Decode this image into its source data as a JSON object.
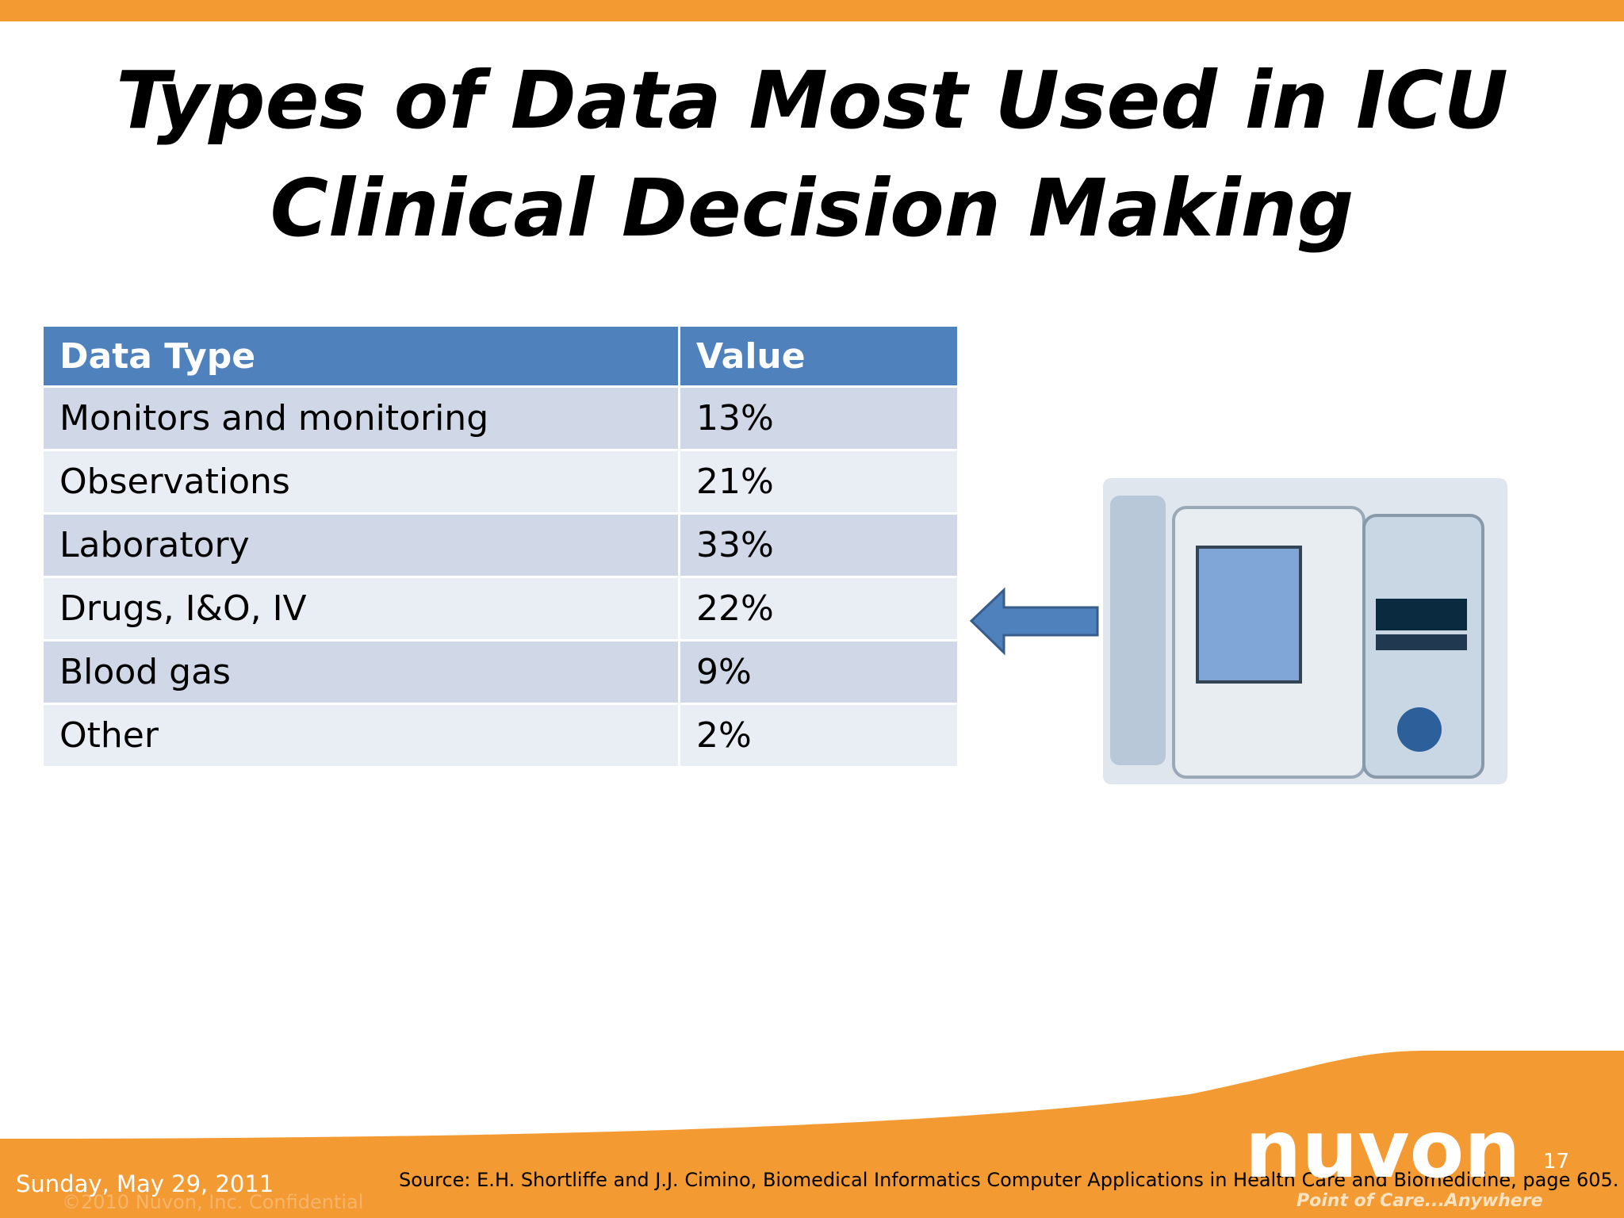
{
  "slide": {
    "title_line1": "Types of Data Most Used in ICU",
    "title_line2": "Clinical Decision Making"
  },
  "table": {
    "header": [
      "Data Type",
      "Value"
    ],
    "rows": [
      [
        "Monitors and monitoring",
        "13%"
      ],
      [
        "Observations",
        "21%"
      ],
      [
        "Laboratory",
        "33%"
      ],
      [
        "Drugs, I&O, IV",
        "22%"
      ],
      [
        "Blood gas",
        "9%"
      ],
      [
        "Other",
        "2%"
      ]
    ]
  },
  "footer": {
    "date": "Sunday, May 29, 2011",
    "confidential": "©2010 Nuvon, Inc. Confidential",
    "source": "Source: E.H. Shortliffe and J.J. Cimino, Biomedical Informatics Computer Applications in Health Care and Biomedicine, page 605.",
    "page_number": "17",
    "logo": "nuvon",
    "tagline": "Point of Care...Anywhere"
  }
}
